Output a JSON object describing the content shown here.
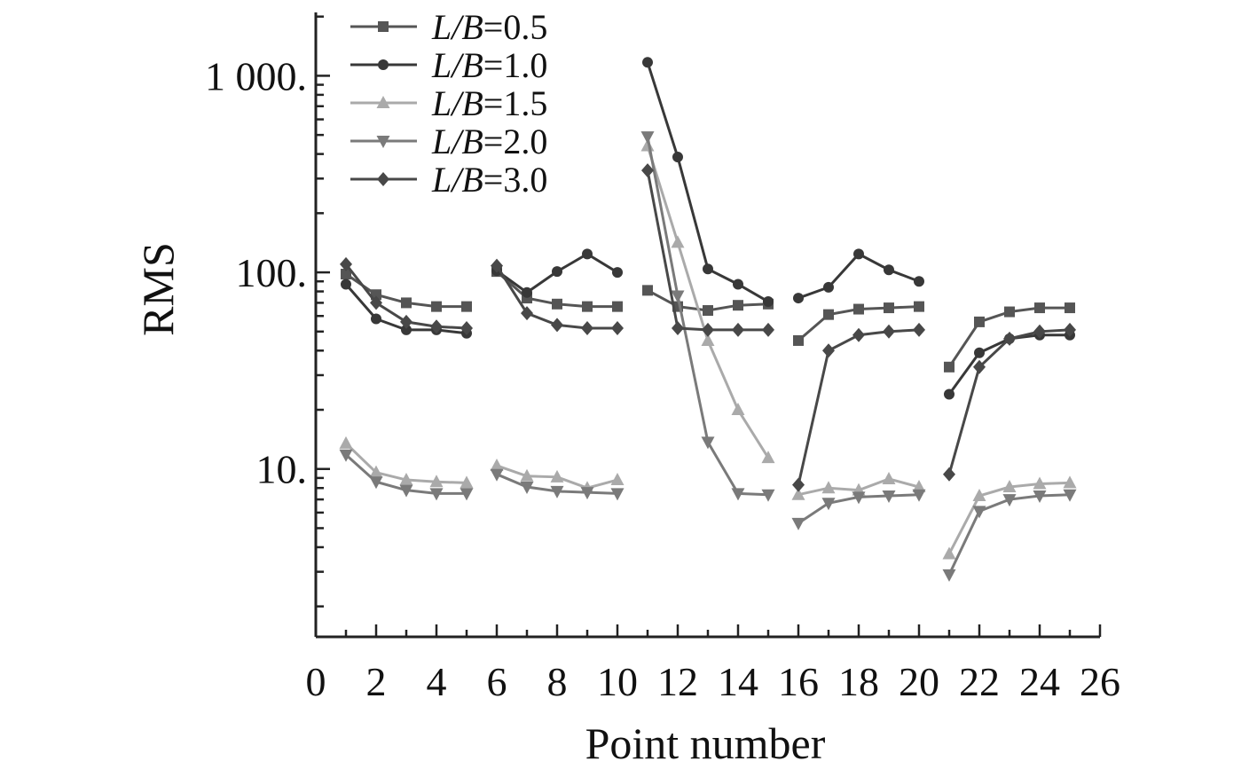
{
  "chart_data": {
    "type": "line",
    "xlabel": "Point number",
    "ylabel": "RMS",
    "xlim": [
      0,
      26
    ],
    "ylim": [
      1.4,
      2100
    ],
    "yscale": "log",
    "x_ticks": [
      0,
      2,
      4,
      6,
      8,
      10,
      12,
      14,
      16,
      18,
      20,
      22,
      24,
      26
    ],
    "y_ticks": [
      {
        "value": 10,
        "label": "10."
      },
      {
        "value": 100,
        "label": "100."
      },
      {
        "value": 1000,
        "label": "1 000."
      }
    ],
    "groups": [
      [
        1,
        2,
        3,
        4,
        5
      ],
      [
        6,
        7,
        8,
        9,
        10
      ],
      [
        11,
        12,
        13,
        14,
        15
      ],
      [
        16,
        17,
        18,
        19,
        20
      ],
      [
        21,
        22,
        23,
        24,
        25
      ]
    ],
    "legend_position": "top-left",
    "series": [
      {
        "name": "L/B=0.5",
        "italic_part": "L/B",
        "value_part": "=0.5",
        "marker": "square",
        "color": "#555555",
        "x": [
          1,
          2,
          3,
          4,
          5,
          6,
          7,
          8,
          9,
          10,
          11,
          12,
          13,
          14,
          15,
          16,
          17,
          18,
          19,
          20,
          21,
          22,
          23,
          24,
          25
        ],
        "values": [
          98,
          77,
          70,
          67,
          67,
          101,
          74,
          69,
          67,
          67,
          81,
          67,
          64,
          68,
          69,
          45,
          61,
          65,
          66,
          67,
          33,
          56,
          63,
          66,
          66
        ]
      },
      {
        "name": "L/B=1.0",
        "italic_part": "L/B",
        "value_part": "=1.0",
        "marker": "circle",
        "color": "#383838",
        "x": [
          1,
          2,
          3,
          4,
          5,
          6,
          7,
          8,
          9,
          10,
          11,
          12,
          13,
          14,
          15,
          16,
          17,
          18,
          19,
          20,
          21,
          22,
          23,
          24,
          25
        ],
        "values": [
          87,
          58,
          51,
          51,
          49,
          102,
          79,
          101,
          124,
          100,
          1170,
          386,
          104,
          87,
          71,
          74,
          84,
          124,
          103,
          90,
          24,
          39,
          46,
          48,
          48
        ]
      },
      {
        "name": "L/B=1.5",
        "italic_part": "L/B",
        "value_part": "=1.5",
        "marker": "triangle-up",
        "color": "#aaaaaa",
        "x": [
          1,
          2,
          3,
          4,
          5,
          6,
          7,
          8,
          9,
          10,
          11,
          12,
          13,
          14,
          15,
          16,
          17,
          18,
          19,
          20,
          21,
          22,
          23,
          24,
          25
        ],
        "values": [
          13.5,
          9.6,
          8.8,
          8.6,
          8.5,
          10.4,
          9.2,
          9.1,
          8.0,
          8.8,
          440,
          142,
          45,
          20,
          11.4,
          7.4,
          8.0,
          7.8,
          8.9,
          8.1,
          3.7,
          7.3,
          8.1,
          8.4,
          8.5
        ]
      },
      {
        "name": "L/B=2.0",
        "italic_part": "L/B",
        "value_part": "=2.0",
        "marker": "triangle-down",
        "color": "#7a7a7a",
        "x": [
          1,
          2,
          3,
          4,
          5,
          6,
          7,
          8,
          9,
          10,
          11,
          12,
          13,
          14,
          15,
          16,
          17,
          18,
          19,
          20,
          21,
          22,
          23,
          24,
          25
        ],
        "values": [
          11.8,
          8.6,
          7.8,
          7.5,
          7.5,
          9.4,
          8.1,
          7.7,
          7.6,
          7.5,
          490,
          76,
          13.7,
          7.5,
          7.4,
          5.3,
          6.7,
          7.2,
          7.3,
          7.4,
          2.9,
          6.1,
          7.0,
          7.3,
          7.4
        ]
      },
      {
        "name": "L/B=3.0",
        "italic_part": "L/B",
        "value_part": "=3.0",
        "marker": "diamond",
        "color": "#484848",
        "x": [
          1,
          2,
          3,
          4,
          5,
          6,
          7,
          8,
          9,
          10,
          11,
          12,
          13,
          14,
          15,
          16,
          17,
          18,
          19,
          20,
          21,
          22,
          23,
          24,
          25
        ],
        "values": [
          110,
          70,
          56,
          53,
          52,
          108,
          62,
          54,
          52,
          52,
          330,
          52,
          51,
          51,
          51,
          8.3,
          40,
          48,
          50,
          51,
          9.4,
          33,
          46,
          50,
          51
        ]
      }
    ]
  }
}
